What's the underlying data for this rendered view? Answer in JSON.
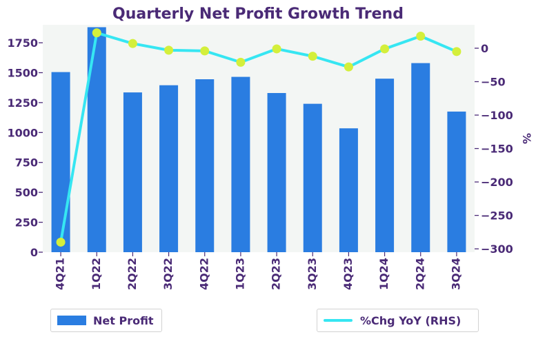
{
  "chart_data": {
    "type": "bar",
    "title": "Quarterly Net Profit Growth Trend",
    "categories": [
      "4Q21",
      "1Q22",
      "2Q22",
      "3Q22",
      "4Q22",
      "1Q23",
      "2Q23",
      "3Q23",
      "4Q23",
      "1Q24",
      "2Q24",
      "3Q24"
    ],
    "series": [
      {
        "name": "Net Profit",
        "type": "bar",
        "axis": "left",
        "values": [
          1505,
          1880,
          1335,
          1395,
          1445,
          1465,
          1330,
          1240,
          1035,
          1450,
          1580,
          1175
        ],
        "color": "#2a7de1"
      },
      {
        "name": "%Chg YoY (RHS)",
        "type": "line",
        "axis": "right",
        "values": [
          -290,
          23,
          7,
          -3,
          -4,
          -21,
          -1,
          -12,
          -28,
          -1,
          18,
          -5
        ],
        "line_color": "#36e6f2",
        "marker_color": "#d4ef3b"
      }
    ],
    "y_left": {
      "min": 0,
      "max": 1900,
      "ticks": [
        0,
        250,
        500,
        750,
        1000,
        1250,
        1500,
        1750
      ]
    },
    "y_right": {
      "min": -305,
      "max": 35,
      "ticks": [
        -300,
        -250,
        -200,
        -150,
        -100,
        -50,
        0
      ],
      "label": "%"
    },
    "x_tick_rotation_deg": -90,
    "grid": false,
    "legend": [
      "bottom-left",
      "bottom-right"
    ]
  },
  "colors": {
    "title": "#4a2a76",
    "tick": "#4a2a76",
    "plot_bg": "#f3f6f4",
    "bar": "#2a7de1",
    "line": "#36e6f2",
    "marker": "#d4ef3b"
  },
  "legend": {
    "left_label": "Net Profit",
    "right_label": "%Chg YoY (RHS)"
  }
}
